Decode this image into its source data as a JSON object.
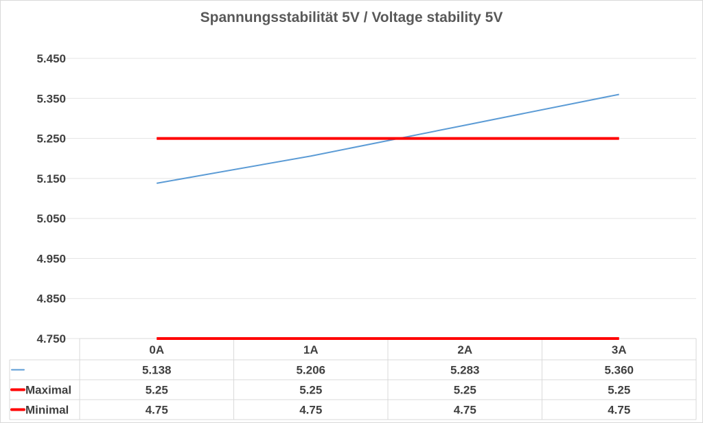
{
  "chart_data": {
    "type": "line",
    "title": "Spannungsstabilität 5V / Voltage stability 5V",
    "categories": [
      "0A",
      "1A",
      "2A",
      "3A"
    ],
    "ylim": [
      4.75,
      5.45
    ],
    "y_ticks": [
      "5.450",
      "5.350",
      "5.250",
      "5.150",
      "5.050",
      "4.950",
      "4.850",
      "4.750"
    ],
    "y_tick_values": [
      5.45,
      5.35,
      5.25,
      5.15,
      5.05,
      4.95,
      4.85,
      4.75
    ],
    "grid": true,
    "legend": "data table",
    "series": [
      {
        "name": "",
        "values": [
          5.138,
          5.206,
          5.283,
          5.36
        ],
        "labels": [
          "5.138",
          "5.206",
          "5.283",
          "5.360"
        ],
        "color": "#5b9bd5"
      },
      {
        "name": "Maximal",
        "values": [
          5.25,
          5.25,
          5.25,
          5.25
        ],
        "labels": [
          "5.25",
          "5.25",
          "5.25",
          "5.25"
        ],
        "color": "#ff0000"
      },
      {
        "name": "Minimal",
        "values": [
          4.75,
          4.75,
          4.75,
          4.75
        ],
        "labels": [
          "4.75",
          "4.75",
          "4.75",
          "4.75"
        ],
        "color": "#ff0000"
      }
    ]
  }
}
